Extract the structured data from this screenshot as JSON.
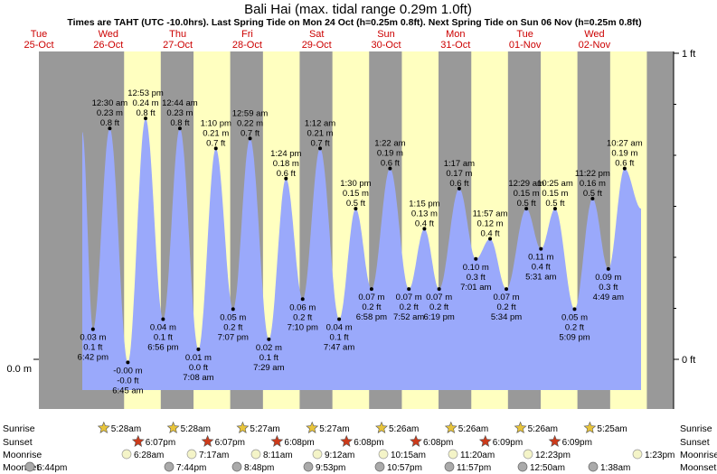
{
  "chart_data": {
    "type": "area",
    "title": "Bali Hai (max. tidal range 0.29m 1.0ft)",
    "subtitle": "Times are TAHT (UTC -10.0hrs). Last Spring Tide on Mon 24 Oct (h=0.25m 0.8ft). Next Spring Tide on Sun 06 Nov (h=0.25m 0.8ft)",
    "y_left_tick": "0.0 m",
    "y_right_ticks": [
      "1 ft",
      "0 ft"
    ],
    "ylim_m": [
      -0.08,
      0.305
    ],
    "days": [
      {
        "dow": "Tue",
        "date": "25-Oct"
      },
      {
        "dow": "Wed",
        "date": "26-Oct"
      },
      {
        "dow": "Thu",
        "date": "27-Oct"
      },
      {
        "dow": "Fri",
        "date": "28-Oct"
      },
      {
        "dow": "Sat",
        "date": "29-Oct"
      },
      {
        "dow": "Sun",
        "date": "30-Oct"
      },
      {
        "dow": "Mon",
        "date": "31-Oct"
      },
      {
        "dow": "Tue",
        "date": "01-Nov"
      },
      {
        "dow": "Wed",
        "date": "02-Nov"
      }
    ],
    "tides": [
      {
        "time": "6:42 pm",
        "m": "0.03 m",
        "ft": "0.1 ft",
        "h": 0.03,
        "day": 0,
        "hr": 18.7,
        "type": "low"
      },
      {
        "time": "12:30 am",
        "m": "0.23 m",
        "ft": "0.8 ft",
        "h": 0.23,
        "day": 1,
        "hr": 0.5,
        "type": "high"
      },
      {
        "time": "6:45 am",
        "m": "-0.00 m",
        "ft": "-0.0 ft",
        "h": -0.003,
        "day": 1,
        "hr": 6.75,
        "type": "low"
      },
      {
        "time": "12:53 pm",
        "m": "0.24 m",
        "ft": "0.8 ft",
        "h": 0.24,
        "day": 1,
        "hr": 12.88,
        "type": "high"
      },
      {
        "time": "6:56 pm",
        "m": "0.04 m",
        "ft": "0.1 ft",
        "h": 0.04,
        "day": 1,
        "hr": 18.93,
        "type": "low"
      },
      {
        "time": "12:44 am",
        "m": "0.23 m",
        "ft": "0.8 ft",
        "h": 0.23,
        "day": 2,
        "hr": 0.73,
        "type": "high"
      },
      {
        "time": "7:08 am",
        "m": "0.01 m",
        "ft": "0.0 ft",
        "h": 0.01,
        "day": 2,
        "hr": 7.13,
        "type": "low"
      },
      {
        "time": "1:10 pm",
        "m": "0.21 m",
        "ft": "0.7 ft",
        "h": 0.21,
        "day": 2,
        "hr": 13.17,
        "type": "high"
      },
      {
        "time": "7:07 pm",
        "m": "0.05 m",
        "ft": "0.2 ft",
        "h": 0.05,
        "day": 2,
        "hr": 19.12,
        "type": "low"
      },
      {
        "time": "12:59 am",
        "m": "0.22 m",
        "ft": "0.7 ft",
        "h": 0.22,
        "day": 3,
        "hr": 0.98,
        "type": "high"
      },
      {
        "time": "7:29 am",
        "m": "0.02 m",
        "ft": "0.1 ft",
        "h": 0.02,
        "day": 3,
        "hr": 7.48,
        "type": "low"
      },
      {
        "time": "1:24 pm",
        "m": "0.18 m",
        "ft": "0.6 ft",
        "h": 0.18,
        "day": 3,
        "hr": 13.4,
        "type": "high"
      },
      {
        "time": "7:10 pm",
        "m": "0.06 m",
        "ft": "0.2 ft",
        "h": 0.06,
        "day": 3,
        "hr": 19.17,
        "type": "low"
      },
      {
        "time": "1:12 am",
        "m": "0.21 m",
        "ft": "0.7 ft",
        "h": 0.21,
        "day": 4,
        "hr": 1.2,
        "type": "high"
      },
      {
        "time": "7:47 am",
        "m": "0.04 m",
        "ft": "0.1 ft",
        "h": 0.04,
        "day": 4,
        "hr": 7.78,
        "type": "low"
      },
      {
        "time": "1:30 pm",
        "m": "0.15 m",
        "ft": "0.5 ft",
        "h": 0.15,
        "day": 4,
        "hr": 13.5,
        "type": "high"
      },
      {
        "time": "6:58 pm",
        "m": "0.07 m",
        "ft": "0.2 ft",
        "h": 0.07,
        "day": 4,
        "hr": 18.97,
        "type": "low"
      },
      {
        "time": "1:22 am",
        "m": "0.19 m",
        "ft": "0.6 ft",
        "h": 0.19,
        "day": 5,
        "hr": 1.37,
        "type": "high"
      },
      {
        "time": "7:52 am",
        "m": "0.07 m",
        "ft": "0.2 ft",
        "h": 0.07,
        "day": 5,
        "hr": 7.87,
        "type": "low"
      },
      {
        "time": "1:15 pm",
        "m": "0.13 m",
        "ft": "0.4 ft",
        "h": 0.13,
        "day": 5,
        "hr": 13.25,
        "type": "high"
      },
      {
        "time": "6:19 pm",
        "m": "0.07 m",
        "ft": "0.2 ft",
        "h": 0.07,
        "day": 5,
        "hr": 18.32,
        "type": "low"
      },
      {
        "time": "1:17 am",
        "m": "0.17 m",
        "ft": "0.6 ft",
        "h": 0.17,
        "day": 6,
        "hr": 1.28,
        "type": "high"
      },
      {
        "time": "7:01 am",
        "m": "0.10 m",
        "ft": "0.3 ft",
        "h": 0.1,
        "day": 6,
        "hr": 7.02,
        "type": "low"
      },
      {
        "time": "11:57 am",
        "m": "0.12 m",
        "ft": "0.4 ft",
        "h": 0.12,
        "day": 6,
        "hr": 11.95,
        "type": "high"
      },
      {
        "time": "5:34 pm",
        "m": "0.07 m",
        "ft": "0.2 ft",
        "h": 0.07,
        "day": 6,
        "hr": 17.57,
        "type": "low"
      },
      {
        "time": "12:29 am",
        "m": "0.15 m",
        "ft": "0.5 ft",
        "h": 0.15,
        "day": 7,
        "hr": 0.48,
        "type": "high"
      },
      {
        "time": "5:31 am",
        "m": "0.11 m",
        "ft": "0.4 ft",
        "h": 0.11,
        "day": 7,
        "hr": 5.52,
        "type": "low"
      },
      {
        "time": "10:25 am",
        "m": "0.15 m",
        "ft": "0.5 ft",
        "h": 0.15,
        "day": 7,
        "hr": 10.42,
        "type": "high"
      },
      {
        "time": "5:09 pm",
        "m": "0.05 m",
        "ft": "0.2 ft",
        "h": 0.05,
        "day": 7,
        "hr": 17.15,
        "type": "low"
      },
      {
        "time": "11:22 pm",
        "m": "0.16 m",
        "ft": "0.5 ft",
        "h": 0.16,
        "day": 7,
        "hr": 23.37,
        "type": "high"
      },
      {
        "time": "4:49 am",
        "m": "0.09 m",
        "ft": "0.3 ft",
        "h": 0.09,
        "day": 8,
        "hr": 4.82,
        "type": "low"
      },
      {
        "time": "10:27 am",
        "m": "0.19 m",
        "ft": "0.6 ft",
        "h": 0.19,
        "day": 8,
        "hr": 10.45,
        "type": "high"
      }
    ],
    "rows": {
      "sunrise_label": "Sunrise",
      "sunset_label": "Sunset",
      "moonrise_label": "Moonrise",
      "moonset_label": "Moonset",
      "sunrise": [
        {
          "day": 1,
          "time": "5:28am"
        },
        {
          "day": 2,
          "time": "5:28am"
        },
        {
          "day": 3,
          "time": "5:27am"
        },
        {
          "day": 4,
          "time": "5:27am"
        },
        {
          "day": 5,
          "time": "5:26am"
        },
        {
          "day": 6,
          "time": "5:26am"
        },
        {
          "day": 7,
          "time": "5:26am"
        },
        {
          "day": 8,
          "time": "5:25am"
        }
      ],
      "sunset": [
        {
          "day": 1,
          "time": "6:07pm"
        },
        {
          "day": 2,
          "time": "6:07pm"
        },
        {
          "day": 3,
          "time": "6:08pm"
        },
        {
          "day": 4,
          "time": "6:08pm"
        },
        {
          "day": 5,
          "time": "6:08pm"
        },
        {
          "day": 6,
          "time": "6:09pm"
        },
        {
          "day": 7,
          "time": "6:09pm"
        }
      ],
      "moonrise": [
        {
          "day": 1,
          "time": "6:28am"
        },
        {
          "day": 2,
          "time": "7:17am"
        },
        {
          "day": 3,
          "time": "8:11am"
        },
        {
          "day": 4,
          "time": "9:12am"
        },
        {
          "day": 5,
          "time": "10:15am"
        },
        {
          "day": 6,
          "time": "11:20am"
        },
        {
          "day": 7,
          "time": "12:23pm"
        },
        {
          "day": 8,
          "time": "1:23pm"
        }
      ],
      "moonset": [
        {
          "day": 1,
          "time": "6:44pm"
        },
        {
          "day": 2,
          "time": "7:44pm"
        },
        {
          "day": 3,
          "time": "8:48pm"
        },
        {
          "day": 4,
          "time": "9:53pm"
        },
        {
          "day": 5,
          "time": "10:57pm"
        },
        {
          "day": 6,
          "time": "11:57pm"
        },
        {
          "day": 8,
          "time": "12:50am"
        },
        {
          "day": 9,
          "time": "1:38am"
        }
      ]
    },
    "colors": {
      "night": "#999999",
      "day": "#ffffc0",
      "water": "#9aa9fb",
      "day_label": "#cc0000",
      "sun": "#e8c43a",
      "sunset": "#cc3a1a",
      "moon": "#f4f4c8",
      "moonset": "#aaaaaa"
    }
  }
}
